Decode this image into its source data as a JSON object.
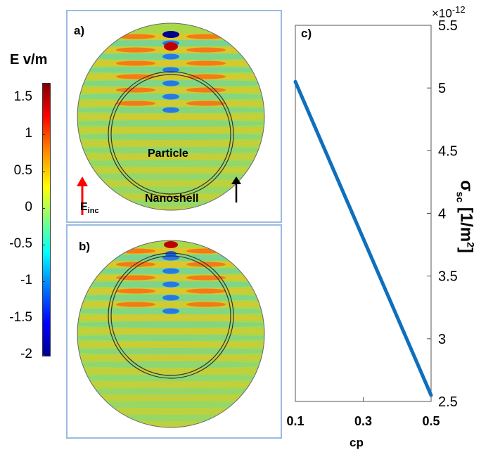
{
  "colorbar": {
    "label": "E v/m",
    "ticks": [
      "1.5",
      "1",
      "0.5",
      "0",
      "-0.5",
      "-1",
      "-1.5",
      "-2"
    ],
    "range": [
      -2,
      1.7
    ],
    "colormap": [
      "#00008f",
      "#0000ff",
      "#0080ff",
      "#00ffff",
      "#80ff80",
      "#ffff00",
      "#ff8000",
      "#ff0000",
      "#800000"
    ]
  },
  "panel_a": {
    "label": "a)",
    "particle_label": "Particle",
    "nanoshell_label": "Nanoshell",
    "incident_label": "E",
    "incident_sub": "inc"
  },
  "panel_b": {
    "label": "b)"
  },
  "chart_data": {
    "type": "line",
    "panel_label": "c)",
    "title": "",
    "xlabel": "cp",
    "ylabel_main": "σ",
    "ylabel_sub": "sc",
    "ylabel_unit": "[1/m",
    "ylabel_sup": "2",
    "ylabel_end": "]",
    "exponent_prefix": "×10",
    "exponent_power": "-12",
    "xlim": [
      0.1,
      0.5
    ],
    "ylim": [
      2.5,
      5.5
    ],
    "x_ticks": [
      "0.1",
      "0.3",
      "0.5"
    ],
    "y_ticks": [
      "5.5",
      "5",
      "4.5",
      "4",
      "3.5",
      "3",
      "2.5"
    ],
    "series": [
      {
        "x": [
          0.1,
          0.5
        ],
        "y": [
          5.05,
          2.55
        ],
        "color": "#0f6fbd"
      }
    ],
    "grid": false
  }
}
